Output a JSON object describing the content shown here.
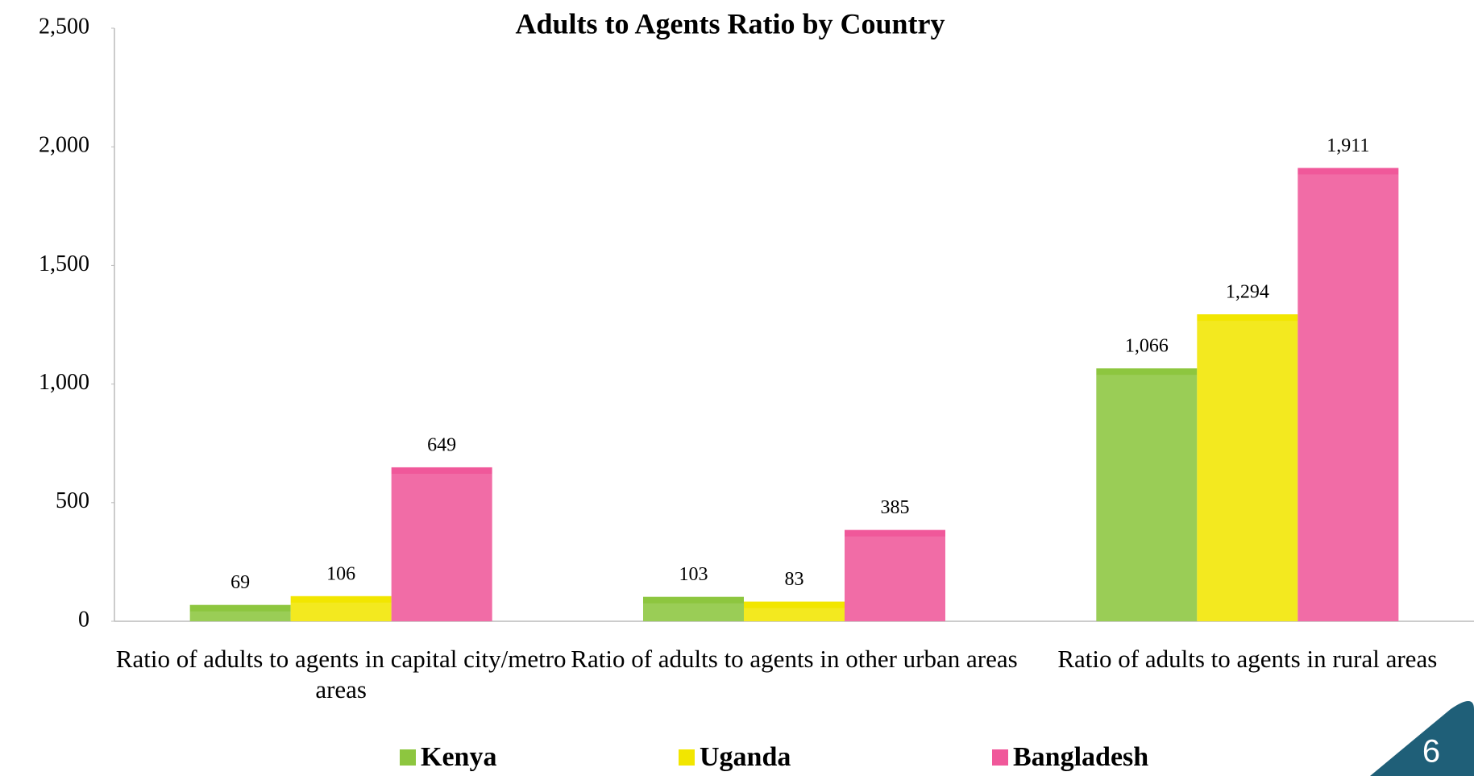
{
  "chart_data": {
    "type": "bar",
    "title": "Adults to Agents Ratio by Country",
    "categories": [
      "Ratio of adults to agents in capital city/metro areas",
      "Ratio of adults to agents in other urban areas",
      "Ratio of adults to agents in rural areas"
    ],
    "series": [
      {
        "name": "Kenya",
        "color": "#8dc63f",
        "values": [
          69,
          103,
          1066
        ],
        "value_labels": [
          "69",
          "103",
          "1,066"
        ]
      },
      {
        "name": "Uganda",
        "color": "#f2e600",
        "values": [
          106,
          83,
          1294
        ],
        "value_labels": [
          "106",
          "83",
          "1,294"
        ]
      },
      {
        "name": "Bangladesh",
        "color": "#f0589a",
        "values": [
          649,
          385,
          1911
        ],
        "value_labels": [
          "649",
          "385",
          "1,911"
        ]
      }
    ],
    "ylim": [
      0,
      2500
    ],
    "yticks": [
      0,
      500,
      {
        "value": 1000,
        "label": "1,000"
      },
      {
        "value": 1500,
        "label": "1,500"
      },
      {
        "value": 2000,
        "label": "2,000"
      },
      {
        "value": 2500,
        "label": "2,500"
      }
    ],
    "grid": false,
    "legend": "bottom"
  },
  "slide_number": "6"
}
